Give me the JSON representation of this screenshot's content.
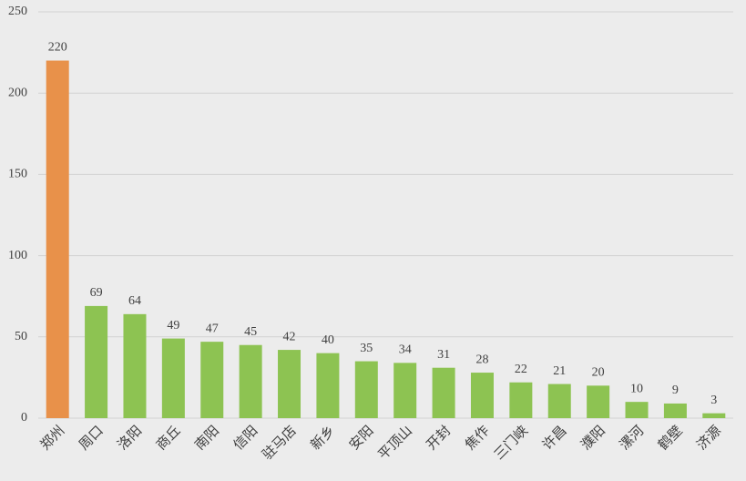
{
  "chart_data": {
    "type": "bar",
    "categories": [
      "郑州",
      "周口",
      "洛阳",
      "商丘",
      "南阳",
      "信阳",
      "驻马店",
      "新乡",
      "安阳",
      "平顶山",
      "开封",
      "焦作",
      "三门峡",
      "许昌",
      "濮阳",
      "漯河",
      "鹤壁",
      "济源"
    ],
    "values": [
      220,
      69,
      64,
      49,
      47,
      45,
      42,
      40,
      35,
      34,
      31,
      28,
      22,
      21,
      20,
      10,
      9,
      3
    ],
    "colors": [
      "#e8914a",
      "#8dc352",
      "#8dc352",
      "#8dc352",
      "#8dc352",
      "#8dc352",
      "#8dc352",
      "#8dc352",
      "#8dc352",
      "#8dc352",
      "#8dc352",
      "#8dc352",
      "#8dc352",
      "#8dc352",
      "#8dc352",
      "#8dc352",
      "#8dc352",
      "#8dc352"
    ],
    "ylim": [
      0,
      250
    ],
    "yticks": [
      0,
      50,
      100,
      150,
      200,
      250
    ],
    "grid": true
  }
}
